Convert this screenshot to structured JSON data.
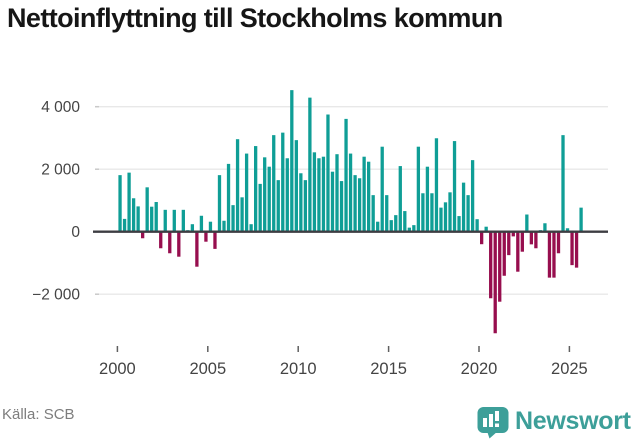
{
  "header": {
    "title": "Nettoinflyttning till Stockholms kommun"
  },
  "footer": {
    "source_label": "Källa: SCB",
    "brand": "Newsworthy"
  },
  "icons": {
    "brand_badge": "newsworthy-bar-chart-badge-icon"
  },
  "colors": {
    "positive_bar": "#0f9e96",
    "negative_bar": "#970e4e",
    "gridline": "#e8e8e8",
    "zero_line": "#3d3d42",
    "axis_text": "#444444",
    "tick_mark": "#606060",
    "title_text": "#161616",
    "source_text": "#7d7d7d",
    "brand_teal": "#3d9f99",
    "background": "#ffffff"
  },
  "chart_data": {
    "type": "bar",
    "title": "Nettoinflyttning till Stockholms kommun",
    "source": "Källa: SCB",
    "frequency": "quarterly",
    "start": "2000Q1",
    "end": "2025Q3",
    "values": [
      1810,
      410,
      1890,
      1070,
      810,
      -210,
      1420,
      800,
      950,
      -530,
      700,
      -690,
      700,
      -800,
      700,
      50,
      240,
      -1120,
      510,
      -320,
      320,
      -550,
      1810,
      350,
      2170,
      850,
      2960,
      1100,
      2500,
      240,
      2740,
      1530,
      2380,
      2080,
      3090,
      1650,
      3170,
      2350,
      4530,
      2930,
      1870,
      1650,
      4290,
      2540,
      2350,
      2400,
      3750,
      1920,
      2480,
      1620,
      3610,
      2500,
      1810,
      1710,
      2400,
      2240,
      1170,
      320,
      2720,
      1170,
      370,
      530,
      2100,
      660,
      130,
      210,
      2720,
      1230,
      2080,
      1230,
      2990,
      770,
      940,
      1260,
      2900,
      500,
      1570,
      1170,
      2290,
      400,
      -400,
      160,
      -2130,
      -3250,
      -2240,
      -1410,
      -750,
      -150,
      -1280,
      -640,
      550,
      -405,
      -530,
      50,
      270,
      -1470,
      -1470,
      -690,
      3090,
      110,
      -1070,
      -1150,
      770
    ],
    "xticks": {
      "years": [
        2000,
        2005,
        2010,
        2015,
        2020,
        2025
      ],
      "labels": [
        "2000",
        "2005",
        "2010",
        "2015",
        "2020",
        "2025"
      ]
    },
    "yticks": {
      "values": [
        -2000,
        0,
        2000,
        4000
      ],
      "labels": [
        "−2 000",
        "0",
        "2 000",
        "4 000"
      ]
    },
    "ylim": [
      -3600,
      5000
    ],
    "grid": "horizontal",
    "legend": "none"
  }
}
